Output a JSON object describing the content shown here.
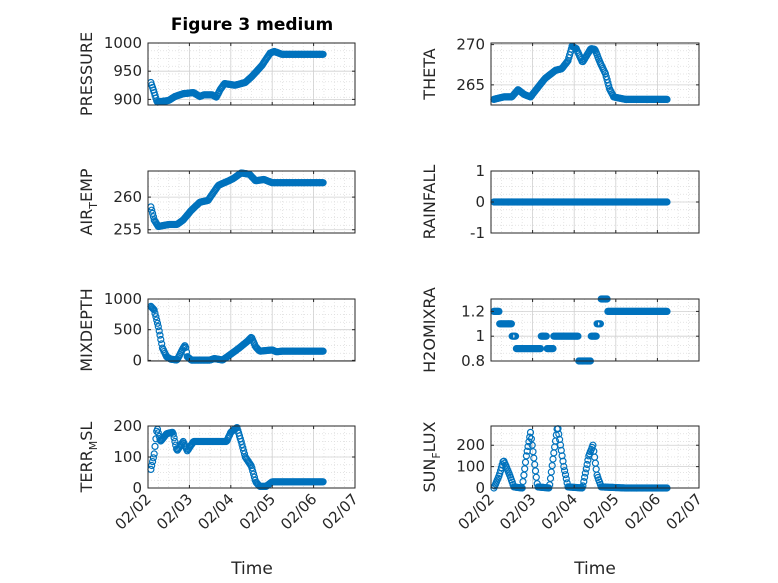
{
  "figure_title": "Figure 3 medium",
  "colors": {
    "marker": "#0072BD",
    "grid": "#dcdcdc",
    "axis": "#262626",
    "background": "#ffffff"
  },
  "chart_data": [
    {
      "type": "scatter",
      "id": "pressure",
      "ylabel": [
        "PRESSURE"
      ],
      "ylim": [
        890,
        1000
      ],
      "yticks": [
        900,
        950,
        1000
      ],
      "ytick_labels": [
        "900",
        "950",
        "1000"
      ],
      "xlim": [
        0,
        5
      ],
      "xticks": [
        0,
        1,
        2,
        3,
        4,
        5
      ],
      "xtick_labels": [],
      "data": {
        "mode": "keys",
        "step": 0.02,
        "min": 0.07,
        "max": 4.23,
        "keys": [
          [
            0.07,
            930
          ],
          [
            0.15,
            912
          ],
          [
            0.22,
            895
          ],
          [
            0.4,
            897
          ],
          [
            0.5,
            898
          ],
          [
            0.65,
            905
          ],
          [
            0.85,
            910
          ],
          [
            1.1,
            912
          ],
          [
            1.25,
            905
          ],
          [
            1.35,
            908
          ],
          [
            1.55,
            908
          ],
          [
            1.65,
            904
          ],
          [
            1.75,
            918
          ],
          [
            1.85,
            928
          ],
          [
            2.1,
            925
          ],
          [
            2.35,
            930
          ],
          [
            2.5,
            940
          ],
          [
            2.75,
            960
          ],
          [
            2.95,
            982
          ],
          [
            3.05,
            985
          ],
          [
            3.23,
            980
          ]
        ]
      }
    },
    {
      "type": "scatter",
      "id": "theta",
      "ylabel": [
        "THETA"
      ],
      "ylim": [
        262.5,
        270.2
      ],
      "yticks": [
        265,
        270
      ],
      "ytick_labels": [
        "265",
        "270"
      ],
      "xlim": [
        0,
        5
      ],
      "xticks": [
        0,
        1,
        2,
        3,
        4,
        5
      ],
      "xtick_labels": [],
      "data": {
        "mode": "keys",
        "step": 0.02,
        "min": 0.07,
        "max": 4.23,
        "keys": [
          [
            0.07,
            263.2
          ],
          [
            0.3,
            263.5
          ],
          [
            0.5,
            263.5
          ],
          [
            0.65,
            264.4
          ],
          [
            0.8,
            263.8
          ],
          [
            0.95,
            263.5
          ],
          [
            1.1,
            264.5
          ],
          [
            1.3,
            265.8
          ],
          [
            1.55,
            266.8
          ],
          [
            1.7,
            267.0
          ],
          [
            1.85,
            268.0
          ],
          [
            1.95,
            269.8
          ],
          [
            2.05,
            269.5
          ],
          [
            2.2,
            267.8
          ],
          [
            2.4,
            269.5
          ],
          [
            2.5,
            269.4
          ],
          [
            2.62,
            267.8
          ],
          [
            2.75,
            266.4
          ],
          [
            2.85,
            264.5
          ],
          [
            2.95,
            263.5
          ],
          [
            3.23,
            263.2
          ]
        ]
      }
    },
    {
      "type": "scatter",
      "id": "air_temp",
      "ylabel": [
        "AIR",
        "T",
        "EMP"
      ],
      "ylim": [
        254.5,
        264
      ],
      "yticks": [
        255,
        260
      ],
      "ytick_labels": [
        "255",
        "260"
      ],
      "xlim": [
        0,
        5
      ],
      "xticks": [
        0,
        1,
        2,
        3,
        4,
        5
      ],
      "xtick_labels": [],
      "data": {
        "mode": "keys",
        "step": 0.02,
        "min": 0.07,
        "max": 4.23,
        "keys": [
          [
            0.07,
            258.5
          ],
          [
            0.15,
            256.5
          ],
          [
            0.25,
            255.5
          ],
          [
            0.5,
            255.8
          ],
          [
            0.7,
            255.8
          ],
          [
            0.85,
            256.5
          ],
          [
            1.05,
            258.0
          ],
          [
            1.25,
            259.2
          ],
          [
            1.45,
            259.5
          ],
          [
            1.7,
            261.8
          ],
          [
            1.95,
            262.5
          ],
          [
            2.05,
            262.8
          ],
          [
            2.25,
            263.7
          ],
          [
            2.45,
            263.5
          ],
          [
            2.6,
            262.5
          ],
          [
            2.8,
            262.7
          ],
          [
            3.0,
            262.2
          ],
          [
            3.23,
            262.2
          ]
        ]
      }
    },
    {
      "type": "scatter",
      "id": "rainfall",
      "ylabel": [
        "RAINFALL"
      ],
      "ylim": [
        -1,
        1
      ],
      "yticks": [
        -1,
        0,
        1
      ],
      "ytick_labels": [
        "-1",
        "0",
        "1"
      ],
      "xlim": [
        0,
        5
      ],
      "xticks": [
        0,
        1,
        2,
        3,
        4,
        5
      ],
      "xtick_labels": [],
      "data": {
        "mode": "constant",
        "step": 0.02,
        "min": 0.07,
        "max": 4.23,
        "value": 0
      }
    },
    {
      "type": "scatter",
      "id": "mixdepth",
      "ylabel": [
        "MIXDEPTH"
      ],
      "ylim": [
        -10,
        1000
      ],
      "yticks": [
        0,
        500,
        1000
      ],
      "ytick_labels": [
        "0",
        "500",
        "1000"
      ],
      "xlim": [
        0,
        5
      ],
      "xticks": [
        0,
        1,
        2,
        3,
        4,
        5
      ],
      "xtick_labels": [],
      "data": {
        "mode": "keys",
        "step": 0.02,
        "min": 0.07,
        "max": 4.23,
        "keys": [
          [
            0.07,
            880
          ],
          [
            0.15,
            820
          ],
          [
            0.25,
            550
          ],
          [
            0.35,
            200
          ],
          [
            0.45,
            60
          ],
          [
            0.55,
            20
          ],
          [
            0.7,
            5
          ],
          [
            0.85,
            200
          ],
          [
            0.9,
            250
          ],
          [
            0.95,
            60
          ],
          [
            1.05,
            5
          ],
          [
            1.5,
            5
          ],
          [
            1.6,
            30
          ],
          [
            1.8,
            5
          ],
          [
            2.0,
            100
          ],
          [
            2.2,
            200
          ],
          [
            2.4,
            310
          ],
          [
            2.5,
            380
          ],
          [
            2.6,
            220
          ],
          [
            2.7,
            150
          ],
          [
            3.0,
            170
          ],
          [
            3.1,
            140
          ],
          [
            3.23,
            150
          ]
        ]
      }
    },
    {
      "type": "scatter",
      "id": "h2omixra",
      "ylabel": [
        "H2OMIXRA"
      ],
      "ylim": [
        0.8,
        1.3
      ],
      "yticks": [
        0.8,
        1.0,
        1.2
      ],
      "ytick_labels": [
        "0.8",
        "1",
        "1.2"
      ],
      "xlim": [
        0,
        5
      ],
      "xticks": [
        0,
        1,
        2,
        3,
        4,
        5
      ],
      "xtick_labels": [],
      "data": {
        "mode": "steps",
        "step": 0.02,
        "min": 0.07,
        "max": 4.23,
        "keys": [
          [
            0.07,
            1.2
          ],
          [
            0.2,
            1.1
          ],
          [
            0.5,
            1.0
          ],
          [
            0.6,
            0.9
          ],
          [
            1.2,
            1.0
          ],
          [
            1.35,
            0.9
          ],
          [
            1.5,
            1.0
          ],
          [
            2.1,
            0.8
          ],
          [
            2.25,
            0.8
          ],
          [
            2.4,
            1.0
          ],
          [
            2.55,
            1.1
          ],
          [
            2.65,
            1.3
          ],
          [
            2.8,
            1.2
          ],
          [
            3.0,
            1.2
          ],
          [
            3.23,
            1.2
          ]
        ]
      }
    },
    {
      "type": "scatter",
      "id": "terr_msl",
      "ylabel": [
        "TERR",
        "M",
        "SL"
      ],
      "ylim": [
        0,
        200
      ],
      "yticks": [
        0,
        100,
        200
      ],
      "ytick_labels": [
        "0",
        "100",
        "200"
      ],
      "xlim": [
        0,
        5
      ],
      "xticks": [
        0,
        1,
        2,
        3,
        4,
        5
      ],
      "xtick_labels": [
        "02/02",
        "02/03",
        "02/04",
        "02/05",
        "02/06",
        "02/07"
      ],
      "data": {
        "mode": "keys",
        "step": 0.02,
        "min": 0.07,
        "max": 4.23,
        "keys": [
          [
            0.07,
            60
          ],
          [
            0.15,
            110
          ],
          [
            0.22,
            195
          ],
          [
            0.3,
            150
          ],
          [
            0.45,
            175
          ],
          [
            0.6,
            180
          ],
          [
            0.7,
            120
          ],
          [
            0.85,
            150
          ],
          [
            0.95,
            120
          ],
          [
            1.1,
            150
          ],
          [
            1.9,
            150
          ],
          [
            2.0,
            180
          ],
          [
            2.15,
            195
          ],
          [
            2.25,
            150
          ],
          [
            2.35,
            100
          ],
          [
            2.5,
            70
          ],
          [
            2.6,
            20
          ],
          [
            2.7,
            5
          ],
          [
            2.85,
            5
          ],
          [
            3.0,
            20
          ],
          [
            3.23,
            20
          ]
        ]
      }
    },
    {
      "type": "scatter",
      "id": "sun_flux",
      "ylabel": [
        "SUN",
        "F",
        "LUX"
      ],
      "ylim": [
        0,
        290
      ],
      "yticks": [
        0,
        100,
        200
      ],
      "ytick_labels": [
        "0",
        "100",
        "200"
      ],
      "xlim": [
        0,
        5
      ],
      "xticks": [
        0,
        1,
        2,
        3,
        4,
        5
      ],
      "xtick_labels": [
        "02/02",
        "02/03",
        "02/04",
        "02/05",
        "02/06",
        "02/07"
      ],
      "data": {
        "mode": "keys",
        "step": 0.02,
        "min": 0.07,
        "max": 4.23,
        "keys": [
          [
            0.07,
            0
          ],
          [
            0.2,
            60
          ],
          [
            0.3,
            130
          ],
          [
            0.45,
            60
          ],
          [
            0.55,
            5
          ],
          [
            0.75,
            0
          ],
          [
            0.85,
            150
          ],
          [
            0.95,
            260
          ],
          [
            1.05,
            110
          ],
          [
            1.12,
            5
          ],
          [
            1.4,
            0
          ],
          [
            1.5,
            150
          ],
          [
            1.6,
            290
          ],
          [
            1.75,
            100
          ],
          [
            1.85,
            5
          ],
          [
            2.2,
            0
          ],
          [
            2.35,
            150
          ],
          [
            2.45,
            200
          ],
          [
            2.55,
            60
          ],
          [
            2.65,
            5
          ],
          [
            3.23,
            0
          ]
        ]
      }
    }
  ],
  "xlabel_left": "Time",
  "xlabel_right": "Time"
}
